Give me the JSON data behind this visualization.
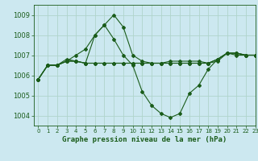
{
  "title": "Graphe pression niveau de la mer (hPa)",
  "background_color": "#cce8f0",
  "grid_color": "#b0d4cc",
  "line_color": "#1a5c1a",
  "xlim": [
    -0.5,
    23
  ],
  "ylim": [
    1003.5,
    1009.5
  ],
  "yticks": [
    1004,
    1005,
    1006,
    1007,
    1008,
    1009
  ],
  "xticks": [
    0,
    1,
    2,
    3,
    4,
    5,
    6,
    7,
    8,
    9,
    10,
    11,
    12,
    13,
    14,
    15,
    16,
    17,
    18,
    19,
    20,
    21,
    22,
    23
  ],
  "series": [
    [
      1005.8,
      1006.5,
      1006.5,
      1006.8,
      1006.7,
      1006.6,
      1008.0,
      1008.5,
      1009.0,
      1008.4,
      1007.0,
      1006.7,
      1006.6,
      1006.6,
      1006.7,
      1006.7,
      1006.7,
      1006.7,
      1006.6,
      1006.7,
      1007.1,
      1007.1,
      1007.0,
      1007.0
    ],
    [
      1005.8,
      1006.5,
      1006.5,
      1006.7,
      1007.0,
      1007.3,
      1008.0,
      1008.5,
      1007.8,
      1007.0,
      1006.5,
      1005.2,
      1004.5,
      1004.1,
      1003.9,
      1004.1,
      1005.1,
      1005.5,
      1006.3,
      1006.8,
      1007.1,
      1007.1,
      1007.0,
      1007.0
    ],
    [
      1005.8,
      1006.5,
      1006.5,
      1006.7,
      1006.7,
      1006.6,
      1006.6,
      1006.6,
      1006.6,
      1006.6,
      1006.6,
      1006.6,
      1006.6,
      1006.6,
      1006.6,
      1006.6,
      1006.6,
      1006.6,
      1006.6,
      1006.8,
      1007.1,
      1007.1,
      1007.0,
      1007.0
    ],
    [
      1005.8,
      1006.5,
      1006.5,
      1006.7,
      1006.7,
      1006.6,
      1006.6,
      1006.6,
      1006.6,
      1006.6,
      1006.6,
      1006.6,
      1006.6,
      1006.6,
      1006.6,
      1006.6,
      1006.6,
      1006.6,
      1006.6,
      1006.8,
      1007.1,
      1007.0,
      1007.0,
      1007.0
    ]
  ],
  "figsize": [
    3.2,
    2.0
  ],
  "dpi": 100
}
